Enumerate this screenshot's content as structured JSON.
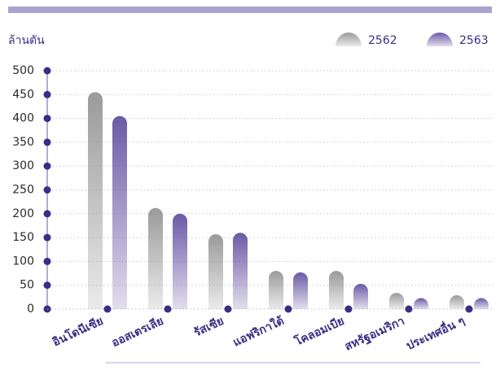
{
  "chart_data": {
    "type": "bar",
    "y_label": "ล้านตัน",
    "categories": [
      "อินโดนีเซีย",
      "ออสเตรเลีย",
      "รัสเซีย",
      "แอฟริกาใต้",
      "โคลอมเบีย",
      "สหรัฐอเมริกา",
      "ประเทศอื่น ๆ"
    ],
    "series": [
      {
        "name": "2562",
        "color": "#9a9a9a",
        "values": [
          455,
          212,
          157,
          80,
          80,
          34,
          29
        ]
      },
      {
        "name": "2563",
        "color": "#6b5aa6",
        "values": [
          405,
          200,
          160,
          77,
          53,
          23,
          23
        ]
      }
    ],
    "ylim": [
      0,
      500
    ],
    "yticks": [
      0,
      50,
      100,
      150,
      200,
      250,
      300,
      350,
      400,
      450,
      500
    ],
    "grid": true,
    "legend": "top-right"
  }
}
